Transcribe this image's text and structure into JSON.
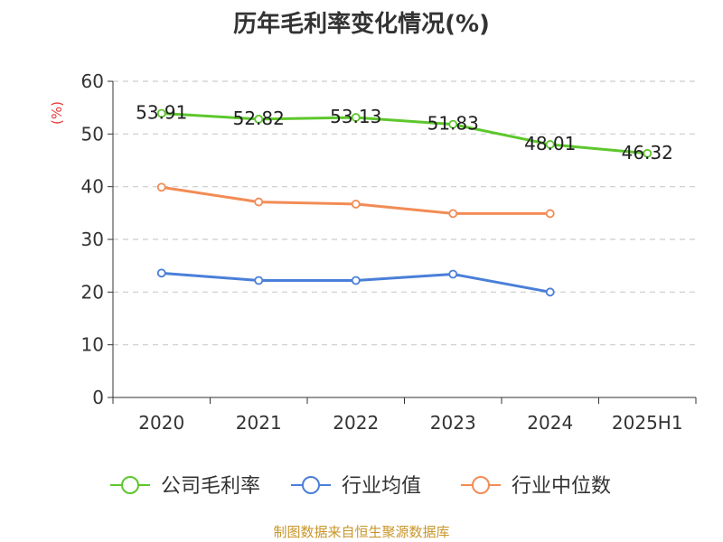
{
  "chart_data": {
    "type": "line",
    "title": "历年毛利率变化情况(%)",
    "ylabel": "(%)",
    "xlabel": "",
    "categories": [
      "2020",
      "2021",
      "2022",
      "2023",
      "2024",
      "2025H1"
    ],
    "ylim": [
      0,
      60
    ],
    "yticks": [
      0,
      10,
      20,
      30,
      40,
      50,
      60
    ],
    "grid": true,
    "legend_position": "bottom",
    "series": [
      {
        "name": "公司毛利率",
        "color": "#5dc72c",
        "show_labels": true,
        "values": [
          53.91,
          52.82,
          53.13,
          51.83,
          48.01,
          46.32
        ],
        "labels": [
          "53.91",
          "52.82",
          "53.13",
          "51.83",
          "48.01",
          "46.32"
        ]
      },
      {
        "name": "行业均值",
        "color": "#4a7fd8",
        "show_labels": false,
        "values": [
          23.6,
          22.2,
          22.2,
          23.4,
          20.0,
          null
        ]
      },
      {
        "name": "行业中位数",
        "color": "#f28c55",
        "show_labels": false,
        "values": [
          39.9,
          37.1,
          36.7,
          34.9,
          34.9,
          null
        ]
      }
    ]
  },
  "footer": {
    "source": "制图数据来自恒生聚源数据库"
  },
  "colors": {
    "ylabel": "#e8393a",
    "axis": "#333333",
    "grid": "#cccccc",
    "source": "#c8962a"
  }
}
